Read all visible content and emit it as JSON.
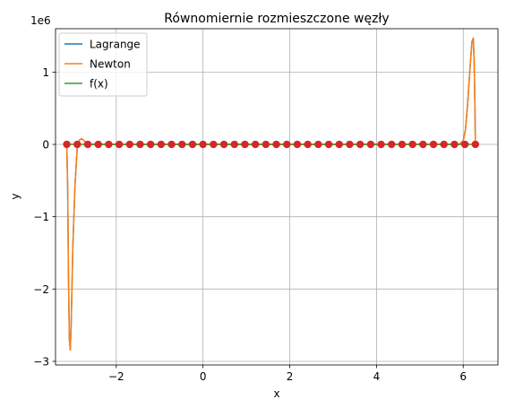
{
  "chart_data": {
    "type": "line",
    "title": "Równomiernie rozmieszczone węzły",
    "xlabel": "x",
    "ylabel": "y",
    "offset_text": "1e6",
    "xlim": [
      -3.4,
      6.8
    ],
    "ylim": [
      -3.05,
      1.6
    ],
    "y_scale": 1000000,
    "xticks": [
      -2,
      0,
      2,
      4,
      6
    ],
    "xtick_labels": [
      "−2",
      "0",
      "2",
      "4",
      "6"
    ],
    "yticks": [
      -3,
      -2,
      -1,
      0,
      1
    ],
    "ytick_labels": [
      "−3",
      "−2",
      "−1",
      "0",
      "1"
    ],
    "grid": true,
    "legend_position": "top-left",
    "series": [
      {
        "name": "Lagrange",
        "color": "#1f77b4",
        "x": [
          -3.14,
          -3.12,
          -3.1,
          -3.08,
          -3.06,
          -3.04,
          -3.0,
          -2.95,
          -2.9,
          -2.85,
          -2.8,
          -2.7,
          -2.6,
          -2.4,
          -2.0,
          0.0,
          2.0,
          4.0,
          5.5,
          5.9,
          6.0,
          6.05,
          6.1,
          6.15,
          6.2,
          6.23,
          6.25,
          6.27,
          6.28
        ],
        "y": [
          0.0,
          -0.6,
          -1.9,
          -2.7,
          -2.84,
          -2.5,
          -1.4,
          -0.55,
          -0.05,
          0.06,
          0.08,
          0.03,
          0.0,
          0.0,
          0.0,
          0.0,
          0.0,
          0.0,
          0.0,
          0.0,
          0.05,
          0.2,
          0.55,
          1.0,
          1.42,
          1.47,
          1.2,
          0.5,
          0.0
        ]
      },
      {
        "name": "Newton",
        "color": "#ff7f0e",
        "x": [
          -3.14,
          -3.12,
          -3.1,
          -3.08,
          -3.06,
          -3.04,
          -3.0,
          -2.95,
          -2.9,
          -2.85,
          -2.8,
          -2.7,
          -2.6,
          -2.4,
          -2.0,
          0.0,
          2.0,
          4.0,
          5.5,
          5.9,
          6.0,
          6.05,
          6.1,
          6.15,
          6.2,
          6.23,
          6.25,
          6.27,
          6.28
        ],
        "y": [
          0.0,
          -0.6,
          -1.9,
          -2.7,
          -2.84,
          -2.5,
          -1.4,
          -0.55,
          -0.05,
          0.06,
          0.08,
          0.03,
          0.0,
          0.0,
          0.0,
          0.0,
          0.0,
          0.0,
          0.0,
          0.0,
          0.05,
          0.2,
          0.55,
          1.0,
          1.42,
          1.47,
          1.2,
          0.5,
          0.0
        ]
      },
      {
        "name": "f(x)",
        "color": "#2ca02c",
        "x": [
          -3.14,
          6.28
        ],
        "y": [
          0.0,
          0.0
        ]
      }
    ],
    "nodes": {
      "color": "#d62728",
      "x_start": -3.14,
      "x_end": 6.28,
      "count": 40,
      "y": 0.0
    }
  }
}
